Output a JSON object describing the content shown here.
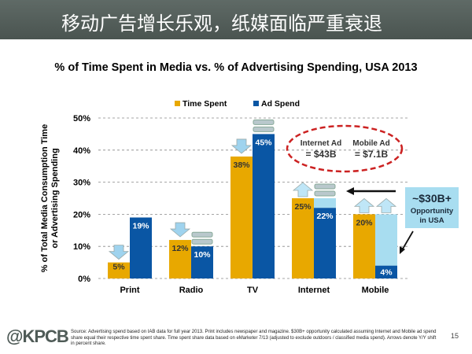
{
  "header": {
    "title": "移动广告增长乐观，纸媒面临严重衰退"
  },
  "footer": {
    "logo": "@KPCB",
    "source": "Source: Advertising spend based on IAB data for full year 2013. Print includes newspaper and magazine. $30B+ opportunity calculated assuming Internet and Mobile ad spend share equal their respective time spent share. Time spent share data based on eMarketer 7/13 (adjusted to exclude outdoors / classified media spend). Arrows denote Y/Y shift in percent share.",
    "page": "15"
  },
  "chart_data": {
    "type": "bar",
    "title": "% of Time Spent in Media vs. % of Advertising Spending, USA 2013",
    "ylabel": "% of Total Media Consumption Time or Advertising Spending",
    "ylim": [
      0,
      50
    ],
    "yticks": [
      "0%",
      "10%",
      "20%",
      "30%",
      "40%",
      "50%"
    ],
    "grid": true,
    "legend": "top",
    "categories": [
      "Print",
      "Radio",
      "TV",
      "Internet",
      "Mobile"
    ],
    "series": [
      {
        "name": "Time Spent",
        "color": "#e8a800",
        "values": [
          5,
          12,
          38,
          25,
          20
        ],
        "labels": [
          "5%",
          "12%",
          "38%",
          "25%",
          "20%"
        ],
        "shift": [
          "down",
          "down",
          "down",
          "up",
          "up"
        ]
      },
      {
        "name": "Ad Spend",
        "color": "#0a56a4",
        "values": [
          19,
          10,
          45,
          22,
          4
        ],
        "labels": [
          "19%",
          "10%",
          "45%",
          "22%",
          "4%"
        ],
        "shift": [
          "none",
          "flat",
          "flat",
          "flat",
          "up"
        ]
      }
    ],
    "gap_color": "#a8ddf0",
    "annotations": {
      "internet_ad_label": "Internet Ad",
      "internet_ad_value": "= $43B",
      "mobile_ad_label": "Mobile Ad",
      "mobile_ad_value": "= $7.1B",
      "opportunity_value": "~$30B+",
      "opportunity_text": "Opportunity in USA",
      "highlight_color": "#cc2222"
    }
  }
}
